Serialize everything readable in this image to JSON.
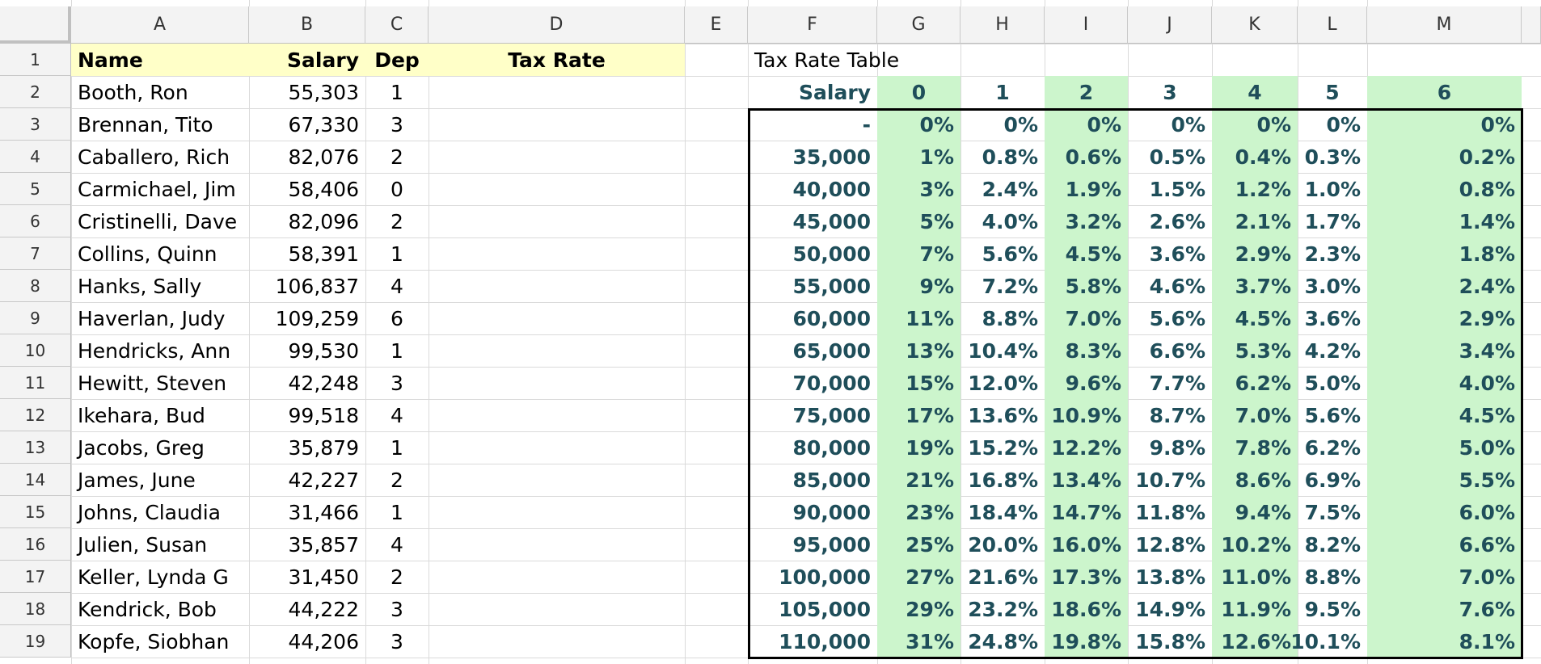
{
  "columns": [
    "A",
    "B",
    "C",
    "D",
    "E",
    "F",
    "G",
    "H",
    "I",
    "J",
    "K",
    "L",
    "M"
  ],
  "rows": [
    "1",
    "2",
    "3",
    "4",
    "5",
    "6",
    "7",
    "8",
    "9",
    "10",
    "11",
    "12",
    "13",
    "14",
    "15",
    "16",
    "17",
    "18",
    "19"
  ],
  "header": {
    "name": "Name",
    "salary": "Salary",
    "dep": "Dep",
    "tax_rate": "Tax Rate"
  },
  "employees": [
    {
      "name": "Booth, Ron",
      "salary": "55,303",
      "dep": "1"
    },
    {
      "name": "Brennan, Tito",
      "salary": "67,330",
      "dep": "3"
    },
    {
      "name": "Caballero, Rich",
      "salary": "82,076",
      "dep": "2"
    },
    {
      "name": "Carmichael, Jim",
      "salary": "58,406",
      "dep": "0"
    },
    {
      "name": "Cristinelli, Dave",
      "salary": "82,096",
      "dep": "2"
    },
    {
      "name": "Collins, Quinn",
      "salary": "58,391",
      "dep": "1"
    },
    {
      "name": "Hanks, Sally",
      "salary": "106,837",
      "dep": "4"
    },
    {
      "name": "Haverlan, Judy",
      "salary": "109,259",
      "dep": "6"
    },
    {
      "name": "Hendricks, Ann",
      "salary": "99,530",
      "dep": "1"
    },
    {
      "name": "Hewitt, Steven",
      "salary": "42,248",
      "dep": "3"
    },
    {
      "name": "Ikehara, Bud",
      "salary": "99,518",
      "dep": "4"
    },
    {
      "name": "Jacobs, Greg",
      "salary": "35,879",
      "dep": "1"
    },
    {
      "name": "James, June",
      "salary": "42,227",
      "dep": "2"
    },
    {
      "name": "Johns, Claudia",
      "salary": "31,466",
      "dep": "1"
    },
    {
      "name": "Julien, Susan",
      "salary": "35,857",
      "dep": "4"
    },
    {
      "name": "Keller, Lynda G",
      "salary": "31,450",
      "dep": "2"
    },
    {
      "name": "Kendrick, Bob",
      "salary": "44,222",
      "dep": "3"
    },
    {
      "name": "Kopfe, Siobhan",
      "salary": "44,206",
      "dep": "3"
    }
  ],
  "tax_table": {
    "title": "Tax Rate Table",
    "salary_label": "Salary",
    "dep_headers": [
      "0",
      "1",
      "2",
      "3",
      "4",
      "5",
      "6"
    ],
    "rows": [
      {
        "salary": "-",
        "rates": [
          "0%",
          "0%",
          "0%",
          "0%",
          "0%",
          "0%",
          "0%"
        ]
      },
      {
        "salary": "35,000",
        "rates": [
          "1%",
          "0.8%",
          "0.6%",
          "0.5%",
          "0.4%",
          "0.3%",
          "0.2%"
        ]
      },
      {
        "salary": "40,000",
        "rates": [
          "3%",
          "2.4%",
          "1.9%",
          "1.5%",
          "1.2%",
          "1.0%",
          "0.8%"
        ]
      },
      {
        "salary": "45,000",
        "rates": [
          "5%",
          "4.0%",
          "3.2%",
          "2.6%",
          "2.1%",
          "1.7%",
          "1.4%"
        ]
      },
      {
        "salary": "50,000",
        "rates": [
          "7%",
          "5.6%",
          "4.5%",
          "3.6%",
          "2.9%",
          "2.3%",
          "1.8%"
        ]
      },
      {
        "salary": "55,000",
        "rates": [
          "9%",
          "7.2%",
          "5.8%",
          "4.6%",
          "3.7%",
          "3.0%",
          "2.4%"
        ]
      },
      {
        "salary": "60,000",
        "rates": [
          "11%",
          "8.8%",
          "7.0%",
          "5.6%",
          "4.5%",
          "3.6%",
          "2.9%"
        ]
      },
      {
        "salary": "65,000",
        "rates": [
          "13%",
          "10.4%",
          "8.3%",
          "6.6%",
          "5.3%",
          "4.2%",
          "3.4%"
        ]
      },
      {
        "salary": "70,000",
        "rates": [
          "15%",
          "12.0%",
          "9.6%",
          "7.7%",
          "6.2%",
          "5.0%",
          "4.0%"
        ]
      },
      {
        "salary": "75,000",
        "rates": [
          "17%",
          "13.6%",
          "10.9%",
          "8.7%",
          "7.0%",
          "5.6%",
          "4.5%"
        ]
      },
      {
        "salary": "80,000",
        "rates": [
          "19%",
          "15.2%",
          "12.2%",
          "9.8%",
          "7.8%",
          "6.2%",
          "5.0%"
        ]
      },
      {
        "salary": "85,000",
        "rates": [
          "21%",
          "16.8%",
          "13.4%",
          "10.7%",
          "8.6%",
          "6.9%",
          "5.5%"
        ]
      },
      {
        "salary": "90,000",
        "rates": [
          "23%",
          "18.4%",
          "14.7%",
          "11.8%",
          "9.4%",
          "7.5%",
          "6.0%"
        ]
      },
      {
        "salary": "95,000",
        "rates": [
          "25%",
          "20.0%",
          "16.0%",
          "12.8%",
          "10.2%",
          "8.2%",
          "6.6%"
        ]
      },
      {
        "salary": "100,000",
        "rates": [
          "27%",
          "21.6%",
          "17.3%",
          "13.8%",
          "11.0%",
          "8.8%",
          "7.0%"
        ]
      },
      {
        "salary": "105,000",
        "rates": [
          "29%",
          "23.2%",
          "18.6%",
          "14.9%",
          "11.9%",
          "9.5%",
          "7.6%"
        ]
      },
      {
        "salary": "110,000",
        "rates": [
          "31%",
          "24.8%",
          "19.8%",
          "15.8%",
          "12.6%",
          "10.1%",
          "8.1%"
        ]
      }
    ]
  },
  "colors": {
    "header_fill": "#ffffc8",
    "dep_fill": "#ccf5cc",
    "table_text": "#1f4e5a",
    "grid": "#dadada",
    "header_bg": "#f3f3f3"
  }
}
